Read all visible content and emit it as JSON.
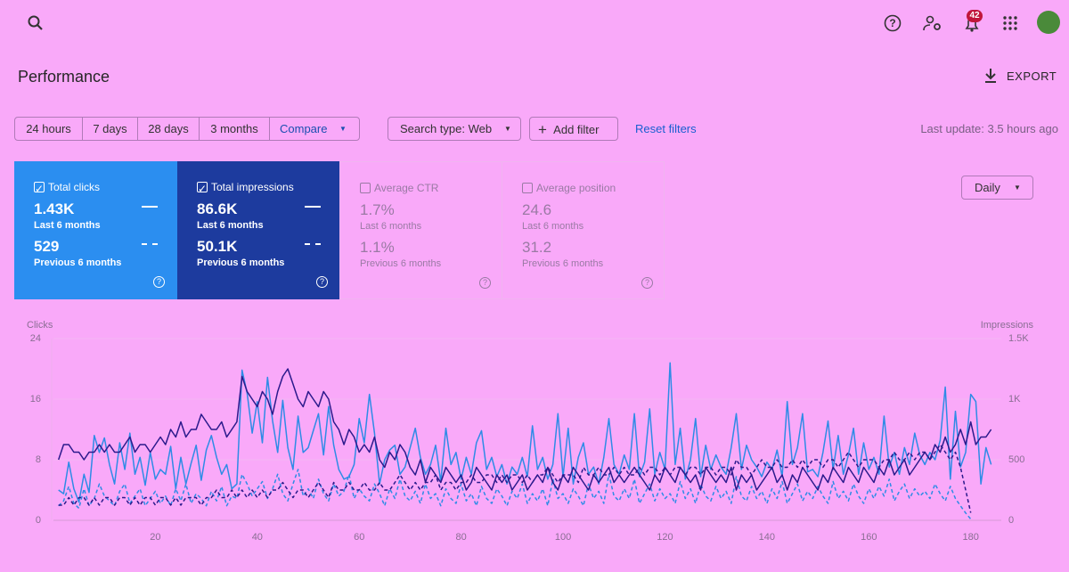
{
  "header": {
    "badge": "42"
  },
  "title": "Performance",
  "export": "EXPORT",
  "ranges": [
    "24 hours",
    "7 days",
    "28 days",
    "3 months",
    "Compare"
  ],
  "filters": {
    "search_type": "Search type: Web",
    "add": "Add filter",
    "reset": "Reset filters",
    "updated": "Last update: 3.5 hours ago"
  },
  "metrics": [
    {
      "name": "Total clicks",
      "value": "1.43K",
      "period": "Last 6 months",
      "previous": "529",
      "previous_period": "Previous 6 months"
    },
    {
      "name": "Total impressions",
      "value": "86.6K",
      "period": "Last 6 months",
      "previous": "50.1K",
      "previous_period": "Previous 6 months"
    },
    {
      "name": "Average CTR",
      "value": "1.7%",
      "period": "Last 6 months",
      "previous": "1.1%",
      "previous_period": "Previous 6 months"
    },
    {
      "name": "Average position",
      "value": "24.6",
      "period": "Last 6 months",
      "previous": "31.2",
      "previous_period": "Previous 6 months"
    }
  ],
  "granularity": "Daily",
  "chart_data": {
    "type": "line",
    "ylabel": "Clicks",
    "y2label": "Impressions",
    "xlim": [
      0,
      186
    ],
    "xticks": [
      20,
      40,
      60,
      80,
      100,
      120,
      140,
      160,
      180
    ],
    "ylim": [
      0,
      24
    ],
    "yticks": [
      0,
      8,
      16,
      24
    ],
    "y2lim": [
      0,
      1500
    ],
    "y2ticks": [
      0,
      500,
      {
        "value": 1000,
        "label": "1K"
      },
      {
        "value": 1500,
        "label": "1.5K"
      }
    ],
    "grid": true,
    "x": [
      1,
      2,
      3,
      4,
      5,
      6,
      7,
      8,
      9,
      10,
      11,
      12,
      13,
      14,
      15,
      16,
      17,
      18,
      19,
      20,
      21,
      22,
      23,
      24,
      25,
      26,
      27,
      28,
      29,
      30,
      31,
      32,
      33,
      34,
      35,
      36,
      37,
      38,
      39,
      40,
      41,
      42,
      43,
      44,
      45,
      46,
      47,
      48,
      49,
      50,
      51,
      52,
      53,
      54,
      55,
      56,
      57,
      58,
      59,
      60,
      61,
      62,
      63,
      64,
      65,
      66,
      67,
      68,
      69,
      70,
      71,
      72,
      73,
      74,
      75,
      76,
      77,
      78,
      79,
      80,
      81,
      82,
      83,
      84,
      85,
      86,
      87,
      88,
      89,
      90,
      91,
      92,
      93,
      94,
      95,
      96,
      97,
      98,
      99,
      100,
      101,
      102,
      103,
      104,
      105,
      106,
      107,
      108,
      109,
      110,
      111,
      112,
      113,
      114,
      115,
      116,
      117,
      118,
      119,
      120,
      121,
      122,
      123,
      124,
      125,
      126,
      127,
      128,
      129,
      130,
      131,
      132,
      133,
      134,
      135,
      136,
      137,
      138,
      139,
      140,
      141,
      142,
      143,
      144,
      145,
      146,
      147,
      148,
      149,
      150,
      151,
      152,
      153,
      154,
      155,
      156,
      157,
      158,
      159,
      160,
      161,
      162,
      163,
      164,
      165,
      166,
      167,
      168,
      169,
      170,
      171,
      172,
      173,
      174,
      175,
      176,
      177,
      178,
      179,
      180,
      181,
      182,
      183,
      184
    ],
    "series": [
      {
        "color": "#2e8be6",
        "axis": "y2",
        "dashed": false,
        "values": [
          250,
          220,
          480,
          260,
          150,
          380,
          230,
          700,
          560,
          680,
          460,
          300,
          640,
          420,
          720,
          380,
          520,
          290,
          560,
          340,
          420,
          380,
          610,
          260,
          520,
          300,
          470,
          620,
          330,
          580,
          700,
          520,
          380,
          460,
          260,
          300,
          1240,
          1050,
          720,
          980,
          640,
          1180,
          820,
          560,
          990,
          600,
          420,
          860,
          560,
          600,
          740,
          880,
          540,
          940,
          620,
          420,
          340,
          360,
          460,
          840,
          640,
          1040,
          720,
          300,
          500,
          580,
          620,
          380,
          440,
          600,
          760,
          520,
          380,
          460,
          620,
          320,
          760,
          460,
          560,
          340,
          520,
          380,
          640,
          740,
          420,
          520,
          360,
          460,
          300,
          440,
          380,
          520,
          360,
          780,
          420,
          520,
          340,
          460,
          880,
          360,
          760,
          300,
          520,
          640,
          380,
          440,
          300,
          520,
          840,
          460,
          380,
          540,
          420,
          880,
          360,
          480,
          920,
          380,
          560,
          420,
          1300,
          460,
          760,
          340,
          500,
          840,
          360,
          620,
          420,
          540,
          440,
          380,
          600,
          880,
          420,
          620,
          500,
          440,
          360,
          480,
          420,
          580,
          360,
          980,
          460,
          600,
          880,
          400,
          420,
          360,
          560,
          820,
          420,
          700,
          380,
          540,
          760,
          380,
          640,
          420,
          520,
          380,
          860,
          440,
          560,
          380,
          600,
          460,
          720,
          540,
          460,
          560,
          500,
          660,
          1100,
          340,
          900,
          440,
          560,
          1040,
          980,
          300,
          600,
          460
        ]
      },
      {
        "color": "#2e8be6",
        "axis": "y2",
        "dashed": true,
        "values": [
          120,
          160,
          280,
          140,
          100,
          260,
          120,
          180,
          300,
          200,
          160,
          120,
          240,
          300,
          140,
          200,
          260,
          120,
          180,
          240,
          140,
          200,
          120,
          260,
          160,
          300,
          140,
          220,
          180,
          120,
          240,
          160,
          280,
          120,
          200,
          180,
          380,
          300,
          200,
          260,
          320,
          180,
          260,
          380,
          220,
          160,
          300,
          420,
          200,
          260,
          180,
          340,
          220,
          160,
          300,
          200,
          240,
          380,
          180,
          260,
          200,
          160,
          300,
          220,
          120,
          260,
          180,
          340,
          200,
          160,
          240,
          140,
          300,
          180,
          220,
          120,
          260,
          180,
          140,
          300,
          160,
          220,
          120,
          280,
          180,
          140,
          260,
          200,
          120,
          240,
          180,
          300,
          140,
          220,
          160,
          260,
          120,
          340,
          180,
          220,
          140,
          260,
          200,
          120,
          300,
          180,
          240,
          140,
          380,
          200,
          160,
          260,
          180,
          340,
          140,
          220,
          300,
          160,
          260,
          180,
          220,
          140,
          320,
          180,
          260,
          140,
          300,
          200,
          160,
          280,
          180,
          240,
          140,
          360,
          200,
          160,
          280,
          180,
          240,
          140,
          260,
          180,
          320,
          140,
          220,
          300,
          160,
          240,
          180,
          280,
          200,
          140,
          320,
          180,
          240,
          160,
          300,
          200,
          140,
          260,
          180,
          280,
          200,
          340,
          160,
          240,
          300,
          180,
          260,
          200,
          240,
          180,
          300,
          220,
          160,
          280,
          180,
          120,
          60,
          10,
          null,
          null,
          null,
          null
        ]
      },
      {
        "color": "#2b1a8c",
        "axis": "y",
        "dashed": true,
        "values": [
          2,
          2,
          3,
          2,
          3,
          3,
          2,
          3,
          2,
          3,
          3,
          2,
          3,
          3,
          2,
          3,
          2,
          3,
          3,
          2,
          3,
          3,
          2,
          3,
          2,
          3,
          3,
          3,
          2,
          3,
          3,
          4,
          3,
          3,
          4,
          3,
          4,
          3,
          4,
          3,
          4,
          3,
          4,
          4,
          5,
          4,
          3,
          4,
          4,
          3,
          4,
          5,
          4,
          3,
          5,
          4,
          4,
          5,
          4,
          4,
          5,
          4,
          4,
          5,
          4,
          4,
          5,
          6,
          5,
          4,
          5,
          4,
          5,
          5,
          6,
          4,
          5,
          5,
          4,
          5,
          5,
          6,
          5,
          5,
          6,
          6,
          5,
          6,
          5,
          6,
          6,
          5,
          6,
          5,
          6,
          6,
          7,
          6,
          5,
          6,
          6,
          6,
          5,
          7,
          6,
          6,
          7,
          6,
          6,
          7,
          6,
          7,
          6,
          6,
          7,
          6,
          7,
          7,
          6,
          7,
          6,
          7,
          7,
          6,
          7,
          7,
          6,
          7,
          7,
          6,
          7,
          7,
          6,
          8,
          7,
          7,
          6,
          7,
          8,
          7,
          7,
          8,
          7,
          7,
          8,
          7,
          8,
          7,
          8,
          8,
          7,
          8,
          8,
          7,
          8,
          9,
          8,
          7,
          8,
          8,
          8,
          7,
          8,
          8,
          9,
          8,
          8,
          9,
          8,
          9,
          9,
          8,
          9,
          10,
          9,
          8,
          9,
          7,
          4,
          1,
          null,
          null,
          null,
          null
        ]
      },
      {
        "color": "#2b1a8c",
        "axis": "y",
        "dashed": false,
        "values": [
          8,
          10,
          10,
          9,
          9,
          8,
          9,
          9,
          10,
          9,
          10,
          9,
          9,
          10,
          11,
          9,
          10,
          10,
          9,
          10,
          11,
          10,
          12,
          11,
          13,
          11,
          12,
          12,
          14,
          13,
          12,
          12,
          13,
          11,
          12,
          13,
          19,
          17,
          16,
          15,
          17,
          16,
          14,
          17,
          19,
          20,
          18,
          16,
          15,
          17,
          16,
          15,
          17,
          16,
          13,
          12,
          10,
          12,
          11,
          9,
          10,
          9,
          11,
          8,
          7,
          9,
          8,
          10,
          9,
          7,
          6,
          8,
          5,
          7,
          6,
          5,
          7,
          6,
          5,
          6,
          4,
          5,
          7,
          6,
          5,
          4,
          6,
          5,
          6,
          4,
          5,
          6,
          4,
          5,
          6,
          5,
          7,
          5,
          4,
          6,
          5,
          7,
          6,
          5,
          4,
          6,
          5,
          6,
          7,
          5,
          6,
          5,
          6,
          7,
          6,
          5,
          4,
          6,
          5,
          7,
          6,
          5,
          7,
          6,
          5,
          6,
          4,
          7,
          6,
          5,
          6,
          5,
          7,
          4,
          6,
          5,
          6,
          4,
          5,
          6,
          7,
          5,
          6,
          4,
          6,
          5,
          7,
          6,
          5,
          4,
          6,
          5,
          7,
          6,
          5,
          7,
          6,
          5,
          7,
          6,
          5,
          7,
          6,
          8,
          6,
          7,
          8,
          6,
          7,
          8,
          9,
          8,
          10,
          9,
          11,
          9,
          10,
          12,
          10,
          13,
          10,
          11,
          11,
          12
        ]
      }
    ]
  }
}
